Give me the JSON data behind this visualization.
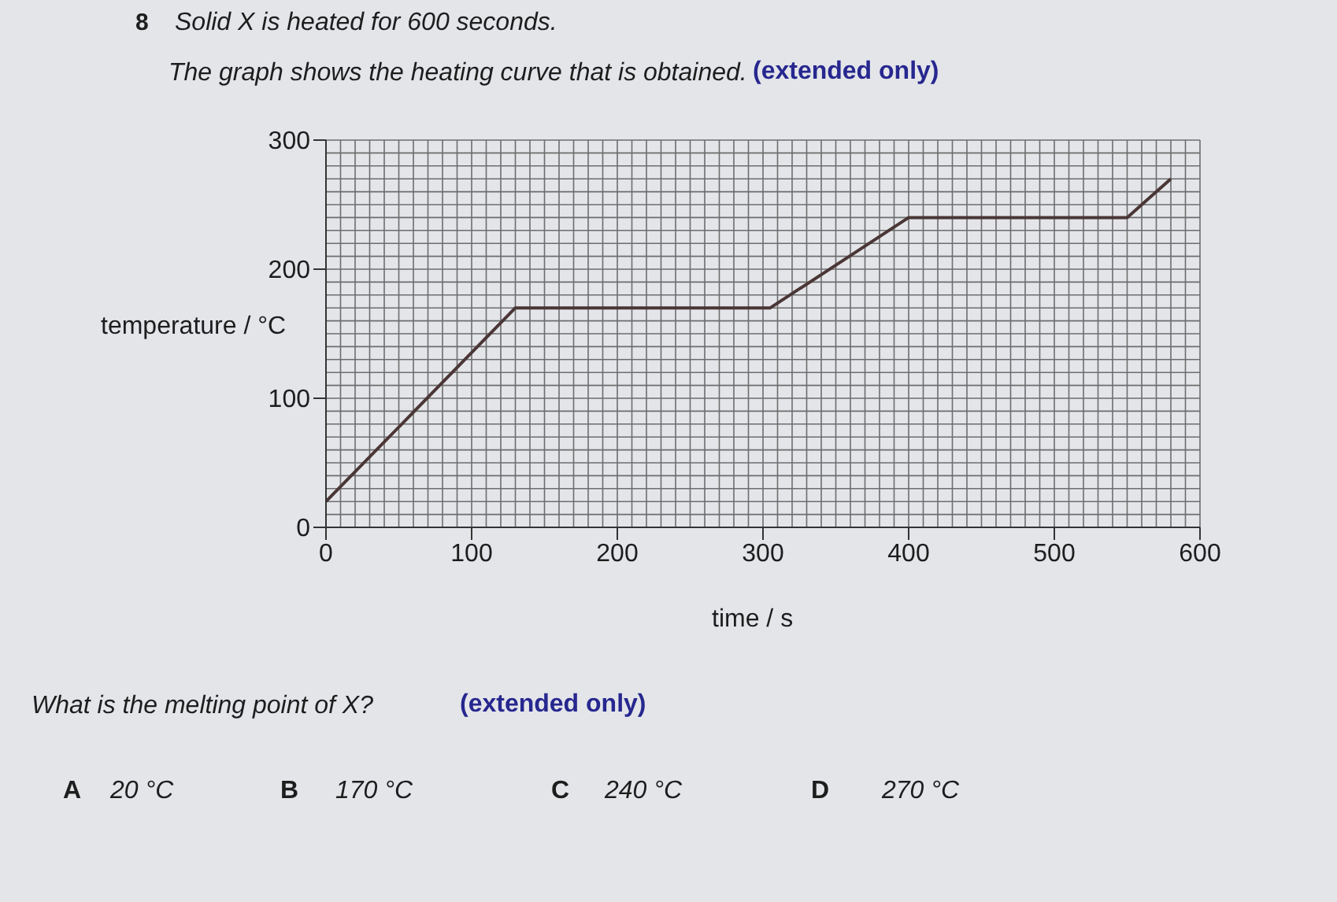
{
  "chart_data": {
    "type": "line",
    "title": "Solid X is heated for 600 seconds.",
    "subtitle": "The graph shows the heating curve that is obtained.",
    "xlabel": "time / s",
    "ylabel": "temperature / °C",
    "x": [
      0,
      130,
      305,
      400,
      550,
      580
    ],
    "series": [
      {
        "color": "#4a3636",
        "values": [
          20,
          170,
          170,
          240,
          240,
          270
        ]
      }
    ],
    "xlim": [
      0,
      600
    ],
    "xticks": [
      0,
      100,
      200,
      300,
      400,
      500,
      600
    ],
    "ylim": [
      0,
      300
    ],
    "yticks": [
      0,
      100,
      200,
      300
    ],
    "grid": true,
    "marker": "none",
    "line_style": "solid",
    "annotations": [
      "8",
      "(extended only)",
      "What is the melting point of X?",
      "(extended only)",
      "A",
      "20 °C",
      "B",
      "170 °C",
      "C",
      "240 °C",
      "D",
      "270 °C"
    ]
  }
}
